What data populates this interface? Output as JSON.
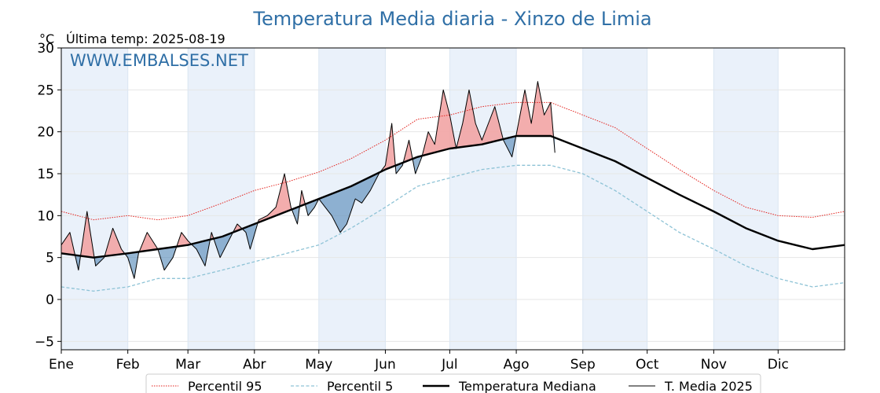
{
  "chart_data": {
    "type": "line",
    "title": "Temperatura Media diaria - Xinzo de Limia",
    "y_unit": "°C",
    "last_temp_label": "Última temp: 2025-08-19",
    "watermark": "WWW.EMBALSES.NET",
    "ylim": [
      -6,
      30
    ],
    "yticks": [
      -5,
      0,
      5,
      10,
      15,
      20,
      25,
      30
    ],
    "ytick_labels": [
      "−5",
      "0",
      "5",
      "10",
      "15",
      "20",
      "25",
      "30"
    ],
    "xlim": [
      0,
      365
    ],
    "months": [
      "Ene",
      "Feb",
      "Mar",
      "Abr",
      "May",
      "Jun",
      "Jul",
      "Ago",
      "Sep",
      "Oct",
      "Nov",
      "Dic"
    ],
    "month_start_day": [
      0,
      31,
      59,
      90,
      120,
      151,
      181,
      212,
      243,
      273,
      304,
      334
    ],
    "grid": true,
    "legend_position": "bottom",
    "colors": {
      "p95": "#e3211c",
      "p5": "#8ec3d6",
      "median": "#000000",
      "t2025": "#000000",
      "above_fill": "#f2a4a4",
      "below_fill": "#4f86b5",
      "title": "#2f6fa6",
      "band": "#eaf1fa"
    },
    "series": [
      {
        "name": "Percentil 95",
        "style": "dotted-red",
        "points": [
          [
            0,
            10.5
          ],
          [
            15,
            9.5
          ],
          [
            31,
            10
          ],
          [
            45,
            9.5
          ],
          [
            59,
            10
          ],
          [
            75,
            11.5
          ],
          [
            90,
            13
          ],
          [
            105,
            14
          ],
          [
            120,
            15.2
          ],
          [
            135,
            16.8
          ],
          [
            151,
            19
          ],
          [
            166,
            21.5
          ],
          [
            181,
            22
          ],
          [
            196,
            23
          ],
          [
            212,
            23.5
          ],
          [
            228,
            23.5
          ],
          [
            243,
            22
          ],
          [
            258,
            20.5
          ],
          [
            273,
            18
          ],
          [
            288,
            15.5
          ],
          [
            304,
            13
          ],
          [
            319,
            11
          ],
          [
            334,
            10
          ],
          [
            350,
            9.8
          ],
          [
            365,
            10.5
          ]
        ]
      },
      {
        "name": "Percentil 5",
        "style": "dashed-lightblue",
        "points": [
          [
            0,
            1.5
          ],
          [
            15,
            1.0
          ],
          [
            31,
            1.5
          ],
          [
            45,
            2.5
          ],
          [
            59,
            2.5
          ],
          [
            75,
            3.5
          ],
          [
            90,
            4.5
          ],
          [
            105,
            5.5
          ],
          [
            120,
            6.5
          ],
          [
            135,
            8.5
          ],
          [
            151,
            11
          ],
          [
            166,
            13.5
          ],
          [
            181,
            14.5
          ],
          [
            196,
            15.5
          ],
          [
            212,
            16
          ],
          [
            228,
            16
          ],
          [
            243,
            15
          ],
          [
            258,
            13
          ],
          [
            273,
            10.5
          ],
          [
            288,
            8
          ],
          [
            304,
            6
          ],
          [
            319,
            4
          ],
          [
            334,
            2.5
          ],
          [
            350,
            1.5
          ],
          [
            365,
            2
          ]
        ]
      },
      {
        "name": "Temperatura Mediana",
        "style": "solid-thick-black",
        "points": [
          [
            0,
            5.5
          ],
          [
            15,
            5
          ],
          [
            31,
            5.5
          ],
          [
            45,
            6
          ],
          [
            59,
            6.5
          ],
          [
            75,
            7.5
          ],
          [
            90,
            9
          ],
          [
            105,
            10.5
          ],
          [
            120,
            12
          ],
          [
            135,
            13.5
          ],
          [
            151,
            15.5
          ],
          [
            166,
            17
          ],
          [
            181,
            18
          ],
          [
            196,
            18.5
          ],
          [
            212,
            19.5
          ],
          [
            228,
            19.5
          ],
          [
            243,
            18
          ],
          [
            258,
            16.5
          ],
          [
            273,
            14.5
          ],
          [
            288,
            12.5
          ],
          [
            304,
            10.5
          ],
          [
            319,
            8.5
          ],
          [
            334,
            7
          ],
          [
            350,
            6
          ],
          [
            365,
            6.5
          ]
        ]
      },
      {
        "name": "T. Media 2025",
        "style": "solid-thin-black",
        "points": [
          [
            0,
            6.5
          ],
          [
            4,
            8
          ],
          [
            8,
            3.5
          ],
          [
            12,
            10.5
          ],
          [
            16,
            4
          ],
          [
            20,
            5
          ],
          [
            24,
            8.5
          ],
          [
            28,
            6
          ],
          [
            31,
            5
          ],
          [
            34,
            2.5
          ],
          [
            36,
            5.5
          ],
          [
            40,
            8
          ],
          [
            45,
            6
          ],
          [
            48,
            3.5
          ],
          [
            52,
            5
          ],
          [
            56,
            8
          ],
          [
            59,
            7
          ],
          [
            63,
            6
          ],
          [
            67,
            4
          ],
          [
            70,
            8
          ],
          [
            74,
            5
          ],
          [
            78,
            7
          ],
          [
            82,
            9
          ],
          [
            86,
            8
          ],
          [
            88,
            6
          ],
          [
            92,
            9.5
          ],
          [
            96,
            10
          ],
          [
            100,
            11
          ],
          [
            104,
            15
          ],
          [
            107,
            11
          ],
          [
            110,
            9
          ],
          [
            112,
            13
          ],
          [
            115,
            10
          ],
          [
            118,
            11
          ],
          [
            120,
            12
          ],
          [
            123,
            11
          ],
          [
            126,
            10
          ],
          [
            130,
            8
          ],
          [
            133,
            9
          ],
          [
            137,
            12
          ],
          [
            140,
            11.5
          ],
          [
            144,
            13
          ],
          [
            148,
            15
          ],
          [
            151,
            16
          ],
          [
            154,
            21
          ],
          [
            156,
            15
          ],
          [
            159,
            16
          ],
          [
            162,
            19
          ],
          [
            165,
            15
          ],
          [
            168,
            17
          ],
          [
            171,
            20
          ],
          [
            174,
            18.5
          ],
          [
            178,
            25
          ],
          [
            181,
            22
          ],
          [
            184,
            18
          ],
          [
            187,
            21
          ],
          [
            190,
            25
          ],
          [
            193,
            21
          ],
          [
            196,
            19
          ],
          [
            199,
            21
          ],
          [
            202,
            23
          ],
          [
            206,
            19
          ],
          [
            210,
            17
          ],
          [
            213,
            21
          ],
          [
            216,
            25
          ],
          [
            219,
            21
          ],
          [
            222,
            26
          ],
          [
            225,
            22
          ],
          [
            228,
            23.5
          ],
          [
            230,
            17.5
          ]
        ]
      }
    ],
    "legend": [
      {
        "label": "Percentil 95",
        "style": "dotted-red"
      },
      {
        "label": "Percentil 5",
        "style": "dashed-lightblue"
      },
      {
        "label": "Temperatura Mediana",
        "style": "solid-thick-black"
      },
      {
        "label": "T. Media 2025",
        "style": "solid-thin-black"
      }
    ]
  }
}
